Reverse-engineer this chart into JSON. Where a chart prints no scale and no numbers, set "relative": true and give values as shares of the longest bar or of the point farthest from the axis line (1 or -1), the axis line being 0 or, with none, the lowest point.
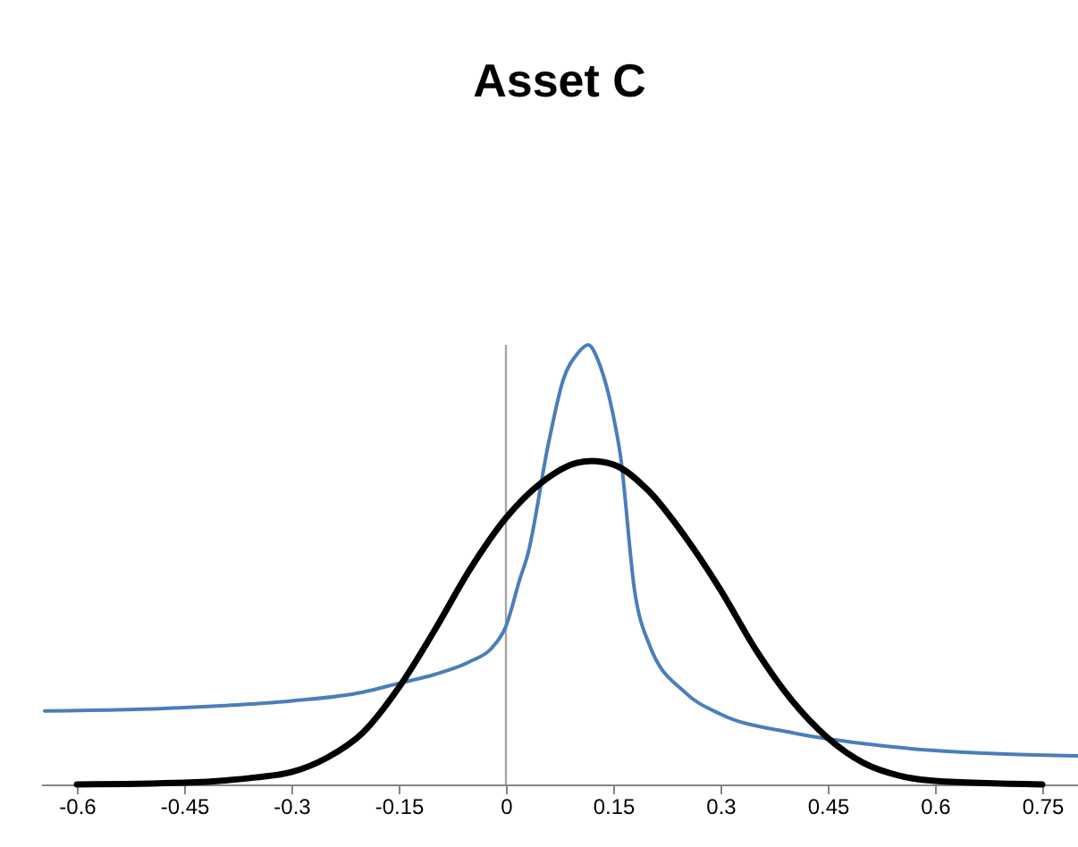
{
  "chart_data": {
    "type": "line",
    "title": "Asset C",
    "relative": true,
    "grid": false,
    "xlim": [
      -0.65,
      0.8
    ],
    "xticks": [
      -0.6,
      -0.45,
      -0.3,
      -0.15,
      0,
      0.15,
      0.3,
      0.45,
      0.6,
      0.75
    ],
    "ref_lines": [
      {
        "axis": "x",
        "value": 0,
        "color": "#a6a6a6"
      }
    ],
    "series": [
      {
        "color": "#4a7ebb",
        "x": [
          -0.645,
          -0.45,
          -0.3,
          -0.2,
          -0.15,
          -0.1,
          -0.05,
          -0.02,
          0,
          0.02,
          0.03,
          0.06,
          0.08,
          0.1,
          0.115,
          0.13,
          0.15,
          0.16,
          0.18,
          0.2,
          0.25,
          0.3,
          0.4,
          0.5,
          0.6,
          0.7,
          0.8
        ],
        "values": [
          0.167,
          0.175,
          0.19,
          0.21,
          0.23,
          0.25,
          0.28,
          0.31,
          0.36,
          0.47,
          0.52,
          0.78,
          0.92,
          0.98,
          1,
          0.96,
          0.84,
          0.75,
          0.44,
          0.32,
          0.21,
          0.16,
          0.118,
          0.093,
          0.077,
          0.069,
          0.065
        ]
      },
      {
        "color": "#000000",
        "x": [
          -0.6,
          -0.45,
          -0.35,
          -0.3,
          -0.25,
          -0.2,
          -0.15,
          -0.1,
          -0.05,
          0,
          0.05,
          0.1,
          0.12,
          0.15,
          0.2,
          0.25,
          0.3,
          0.35,
          0.4,
          0.45,
          0.5,
          0.55,
          0.6,
          0.75
        ],
        "values": [
          0,
          0.004,
          0.016,
          0.028,
          0.061,
          0.118,
          0.22,
          0.35,
          0.49,
          0.606,
          0.687,
          0.732,
          0.736,
          0.728,
          0.667,
          0.565,
          0.443,
          0.305,
          0.191,
          0.106,
          0.049,
          0.02,
          0.008,
          0
        ]
      }
    ]
  }
}
